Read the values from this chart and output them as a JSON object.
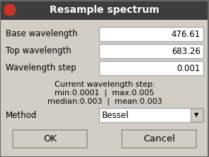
{
  "title": "Resample spectrum",
  "title_bar_color": "#3d3d3d",
  "title_text_color": "#ffffff",
  "close_btn_color": "#cc3322",
  "bg_color": "#d2cec6",
  "field_bg": "#ffffff",
  "field_border": "#aaaaaa",
  "labels": [
    "Base wavelength",
    "Top wavelength",
    "Wavelength step"
  ],
  "values": [
    "476.61",
    "683.26",
    "0.001"
  ],
  "info_line1": "Current wavelength step:",
  "info_line2": "min:0.0001  |  max:0.005",
  "info_line3": "median:0.003  |  mean:0.003",
  "method_label": "Method",
  "method_value": "Bessel",
  "btn1": "OK",
  "btn2": "Cancel",
  "text_color": "#000000",
  "font_size": 8.5,
  "btn_border": "#999999"
}
